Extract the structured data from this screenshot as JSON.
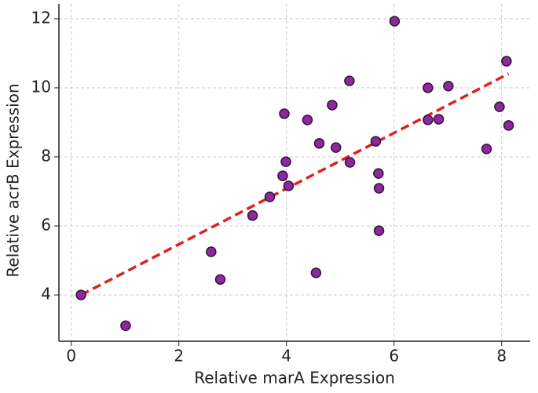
{
  "chart_data": {
    "type": "scatter",
    "x_label": "Relative marA Expression",
    "y_label": "Relative acrB Expression",
    "x": [
      0.18,
      1.01,
      2.6,
      2.77,
      3.37,
      3.69,
      3.93,
      3.99,
      4.04,
      3.96,
      4.39,
      4.61,
      4.55,
      4.85,
      4.92,
      5.17,
      5.18,
      5.66,
      5.71,
      5.72,
      5.72,
      6.01,
      6.63,
      6.63,
      6.83,
      7.01,
      7.72,
      7.96,
      8.09,
      8.13
    ],
    "y": [
      4.0,
      3.11,
      5.25,
      4.45,
      6.3,
      6.84,
      7.45,
      7.86,
      7.16,
      9.25,
      9.07,
      8.39,
      4.64,
      9.5,
      8.27,
      10.2,
      7.84,
      8.45,
      7.52,
      7.09,
      5.86,
      11.93,
      10.0,
      9.07,
      9.09,
      10.05,
      8.23,
      9.45,
      10.77,
      8.91
    ],
    "color": "#8b2a9a",
    "trendline": {
      "x": [
        0.18,
        8.13
      ],
      "y": [
        4.0,
        10.41
      ],
      "color": "#e02020"
    },
    "xlim": [
      -0.23,
      8.53
    ],
    "ylim": [
      2.66,
      12.43
    ],
    "xticks": [
      0,
      2,
      4,
      6,
      8
    ],
    "yticks": [
      4,
      6,
      8,
      10,
      12
    ],
    "grid": true
  }
}
